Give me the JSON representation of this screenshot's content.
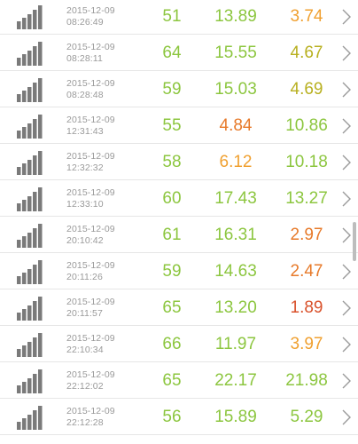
{
  "colors": {
    "green": "#8cc63f",
    "orange": "#f0a030",
    "dark_orange": "#e77a2a",
    "red": "#d9522c",
    "yellow_olive": "#b8b020",
    "gray_icon": "#7a7a7a",
    "gray_text": "#9a9a9a"
  },
  "icons": {
    "signal": "signal-strength-icon",
    "chevron": "chevron-right-icon"
  },
  "rows": [
    {
      "date": "2015-12-09",
      "time": "08:26:49",
      "v1": "51",
      "v2": "13.89",
      "v3": "3.74",
      "c1": "green",
      "c2": "green",
      "c3": "orange"
    },
    {
      "date": "2015-12-09",
      "time": "08:28:11",
      "v1": "64",
      "v2": "15.55",
      "v3": "4.67",
      "c1": "green",
      "c2": "green",
      "c3": "yellow_olive"
    },
    {
      "date": "2015-12-09",
      "time": "08:28:48",
      "v1": "59",
      "v2": "15.03",
      "v3": "4.69",
      "c1": "green",
      "c2": "green",
      "c3": "yellow_olive"
    },
    {
      "date": "2015-12-09",
      "time": "12:31:43",
      "v1": "55",
      "v2": "4.84",
      "v3": "10.86",
      "c1": "green",
      "c2": "dark_orange",
      "c3": "green"
    },
    {
      "date": "2015-12-09",
      "time": "12:32:32",
      "v1": "58",
      "v2": "6.12",
      "v3": "10.18",
      "c1": "green",
      "c2": "orange",
      "c3": "green"
    },
    {
      "date": "2015-12-09",
      "time": "12:33:10",
      "v1": "60",
      "v2": "17.43",
      "v3": "13.27",
      "c1": "green",
      "c2": "green",
      "c3": "green"
    },
    {
      "date": "2015-12-09",
      "time": "20:10:42",
      "v1": "61",
      "v2": "16.31",
      "v3": "2.97",
      "c1": "green",
      "c2": "green",
      "c3": "dark_orange"
    },
    {
      "date": "2015-12-09",
      "time": "20:11:26",
      "v1": "59",
      "v2": "14.63",
      "v3": "2.47",
      "c1": "green",
      "c2": "green",
      "c3": "dark_orange"
    },
    {
      "date": "2015-12-09",
      "time": "20:11:57",
      "v1": "65",
      "v2": "13.20",
      "v3": "1.89",
      "c1": "green",
      "c2": "green",
      "c3": "red"
    },
    {
      "date": "2015-12-09",
      "time": "22:10:34",
      "v1": "66",
      "v2": "11.97",
      "v3": "3.97",
      "c1": "green",
      "c2": "green",
      "c3": "orange"
    },
    {
      "date": "2015-12-09",
      "time": "22:12:02",
      "v1": "65",
      "v2": "22.17",
      "v3": "21.98",
      "c1": "green",
      "c2": "green",
      "c3": "green"
    },
    {
      "date": "2015-12-09",
      "time": "22:12:28",
      "v1": "56",
      "v2": "15.89",
      "v3": "5.29",
      "c1": "green",
      "c2": "green",
      "c3": "green"
    }
  ]
}
